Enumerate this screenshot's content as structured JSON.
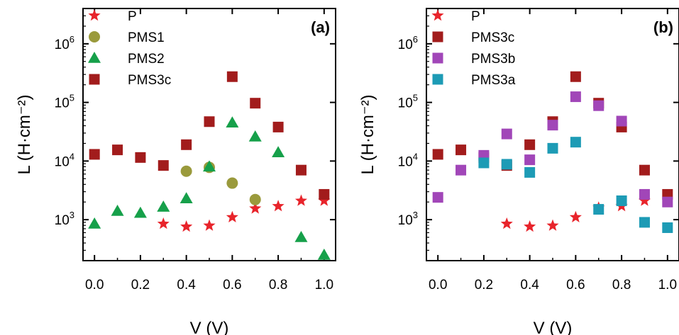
{
  "chart_data": [
    {
      "type": "scatter",
      "panel_label": "(a)",
      "xlabel": "V (V)",
      "ylabel": "L (H·cm⁻²)",
      "y_scale": "log",
      "xlim": [
        -0.05,
        1.05
      ],
      "ylim": [
        200,
        4000000
      ],
      "x_ticks": [
        "0.0",
        "0.2",
        "0.4",
        "0.6",
        "0.8",
        "1.0"
      ],
      "y_ticks": [
        {
          "base": "10",
          "exp": "3"
        },
        {
          "base": "10",
          "exp": "4"
        },
        {
          "base": "10",
          "exp": "5"
        },
        {
          "base": "10",
          "exp": "6"
        }
      ],
      "legend_position": "top-left",
      "series": [
        {
          "name": "P",
          "marker": "star",
          "color": "#e8242b",
          "x": [
            0.3,
            0.4,
            0.5,
            0.6,
            0.7,
            0.8,
            0.9,
            1.0
          ],
          "y": [
            850,
            760,
            790,
            1100,
            1550,
            1700,
            2100,
            2100
          ]
        },
        {
          "name": "PMS1",
          "marker": "circle",
          "color": "#9a9a3c",
          "x": [
            0.4,
            0.5,
            0.6,
            0.7
          ],
          "y": [
            6700,
            7800,
            4200,
            2200
          ]
        },
        {
          "name": "PMS2",
          "marker": "triangle",
          "color": "#16a04a",
          "x": [
            0.0,
            0.1,
            0.2,
            0.3,
            0.4,
            0.5,
            0.6,
            0.7,
            0.8,
            0.9,
            1.0
          ],
          "y": [
            850,
            1400,
            1300,
            1650,
            2300,
            8000,
            45000,
            26000,
            14000,
            500,
            250
          ]
        },
        {
          "name": "PMS3c",
          "marker": "square",
          "color": "#a21c1c",
          "x": [
            0.0,
            0.1,
            0.2,
            0.3,
            0.4,
            0.5,
            0.6,
            0.7,
            0.8,
            0.9,
            1.0
          ],
          "y": [
            13000,
            15500,
            11500,
            8400,
            19000,
            47000,
            275000,
            97000,
            38000,
            7000,
            2700
          ]
        }
      ]
    },
    {
      "type": "scatter",
      "panel_label": "(b)",
      "xlabel": "V (V)",
      "ylabel": "L (H·cm⁻²)",
      "y_scale": "log",
      "xlim": [
        -0.05,
        1.05
      ],
      "ylim": [
        200,
        4000000
      ],
      "x_ticks": [
        "0.0",
        "0.2",
        "0.4",
        "0.6",
        "0.8",
        "1.0"
      ],
      "y_ticks": [
        {
          "base": "10",
          "exp": "3"
        },
        {
          "base": "10",
          "exp": "4"
        },
        {
          "base": "10",
          "exp": "5"
        },
        {
          "base": "10",
          "exp": "6"
        }
      ],
      "legend_position": "top-left",
      "series": [
        {
          "name": "P",
          "marker": "star",
          "color": "#e8242b",
          "x": [
            0.3,
            0.4,
            0.5,
            0.6,
            0.7,
            0.8,
            0.9
          ],
          "y": [
            850,
            760,
            790,
            1100,
            1600,
            1700,
            2100
          ]
        },
        {
          "name": "PMS3c",
          "marker": "square",
          "color": "#a21c1c",
          "x": [
            0.0,
            0.1,
            0.2,
            0.3,
            0.4,
            0.5,
            0.6,
            0.7,
            0.8,
            0.9,
            1.0
          ],
          "y": [
            13000,
            15500,
            11500,
            8400,
            19000,
            47000,
            275000,
            97000,
            38000,
            7000,
            2700
          ]
        },
        {
          "name": "PMS3b",
          "marker": "square",
          "color": "#a146b8",
          "x": [
            0.0,
            0.1,
            0.2,
            0.3,
            0.4,
            0.5,
            0.6,
            0.7,
            0.8,
            0.9,
            1.0
          ],
          "y": [
            2400,
            7000,
            12500,
            29000,
            10500,
            41000,
            125000,
            88000,
            48000,
            2700,
            2000
          ]
        },
        {
          "name": "PMS3a",
          "marker": "square",
          "color": "#1d9bb5",
          "x": [
            0.2,
            0.3,
            0.4,
            0.5,
            0.6,
            0.7,
            0.8,
            0.9,
            1.0
          ],
          "y": [
            9300,
            8800,
            6400,
            16500,
            21000,
            1500,
            2100,
            900,
            730
          ]
        }
      ]
    }
  ]
}
